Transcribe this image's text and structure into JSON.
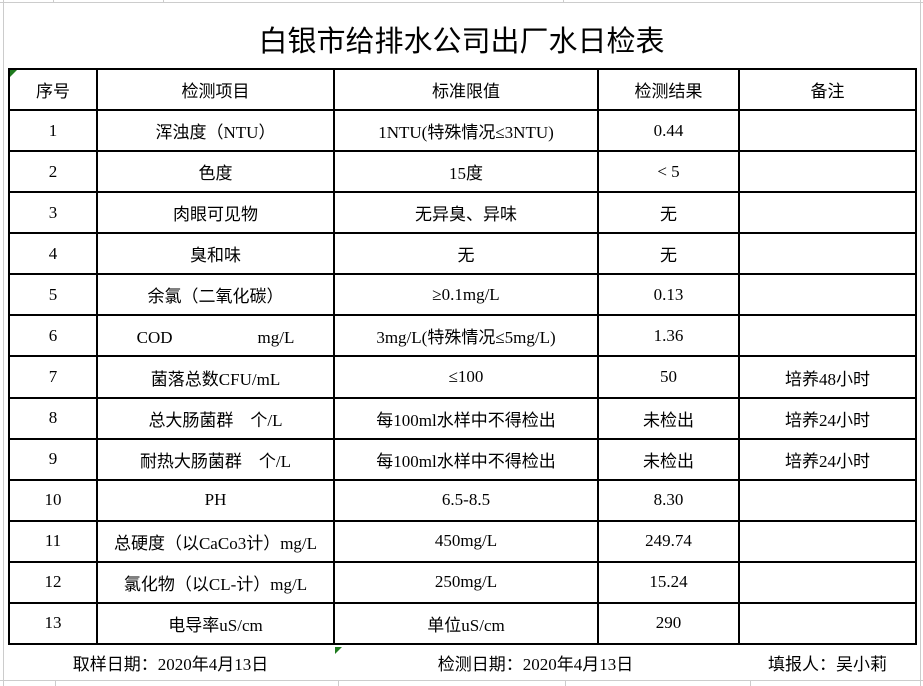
{
  "title": "白银市给排水公司出厂水日检表",
  "table": {
    "headers": [
      "序号",
      "检测项目",
      "标准限值",
      "检测结果",
      "备注"
    ],
    "rows": [
      {
        "no": "1",
        "item": "浑浊度（NTU）",
        "limit": "1NTU(特殊情况≤3NTU)",
        "result": "0.44",
        "note": ""
      },
      {
        "no": "2",
        "item": "色度",
        "limit": "15度",
        "result": "< 5",
        "note": ""
      },
      {
        "no": "3",
        "item": "肉眼可见物",
        "limit": "无异臭、异味",
        "result": "无",
        "note": ""
      },
      {
        "no": "4",
        "item": "臭和味",
        "limit": "无",
        "result": "无",
        "note": ""
      },
      {
        "no": "5",
        "item": "余氯（二氧化碳）",
        "limit": "≥0.1mg/L",
        "result": "0.13",
        "note": ""
      },
      {
        "no": "6",
        "item": "COD　　　　　mg/L",
        "limit": "3mg/L(特殊情况≤5mg/L)",
        "result": "1.36",
        "note": ""
      },
      {
        "no": "7",
        "item": "菌落总数CFU/mL",
        "limit": "≤100",
        "result": "50",
        "note": "培养48小时"
      },
      {
        "no": "8",
        "item": "总大肠菌群　个/L",
        "limit": "每100ml水样中不得检出",
        "result": "未检出",
        "note": "培养24小时"
      },
      {
        "no": "9",
        "item": "耐热大肠菌群　个/L",
        "limit": "每100ml水样中不得检出",
        "result": "未检出",
        "note": "培养24小时"
      },
      {
        "no": "10",
        "item": "PH",
        "limit": "6.5-8.5",
        "result": "8.30",
        "note": ""
      },
      {
        "no": "11",
        "item": "总硬度（以CaCo3计）mg/L",
        "limit": "450mg/L",
        "result": "249.74",
        "note": ""
      },
      {
        "no": "12",
        "item": "氯化物（以CL-计）mg/L",
        "limit": "250mg/L",
        "result": "15.24",
        "note": ""
      },
      {
        "no": "13",
        "item": "电导率uS/cm",
        "limit": "单位uS/cm",
        "result": "290",
        "note": ""
      }
    ]
  },
  "footer": {
    "sample_date": "取样日期：2020年4月13日",
    "test_date": "检测日期：2020年4月13日",
    "reporter": "填报人：吴小莉"
  },
  "colors": {
    "border": "#000000",
    "gridline": "#cccccc",
    "error_marker_green": "#1e7a1e",
    "text": "#000000",
    "background": "#ffffff"
  }
}
